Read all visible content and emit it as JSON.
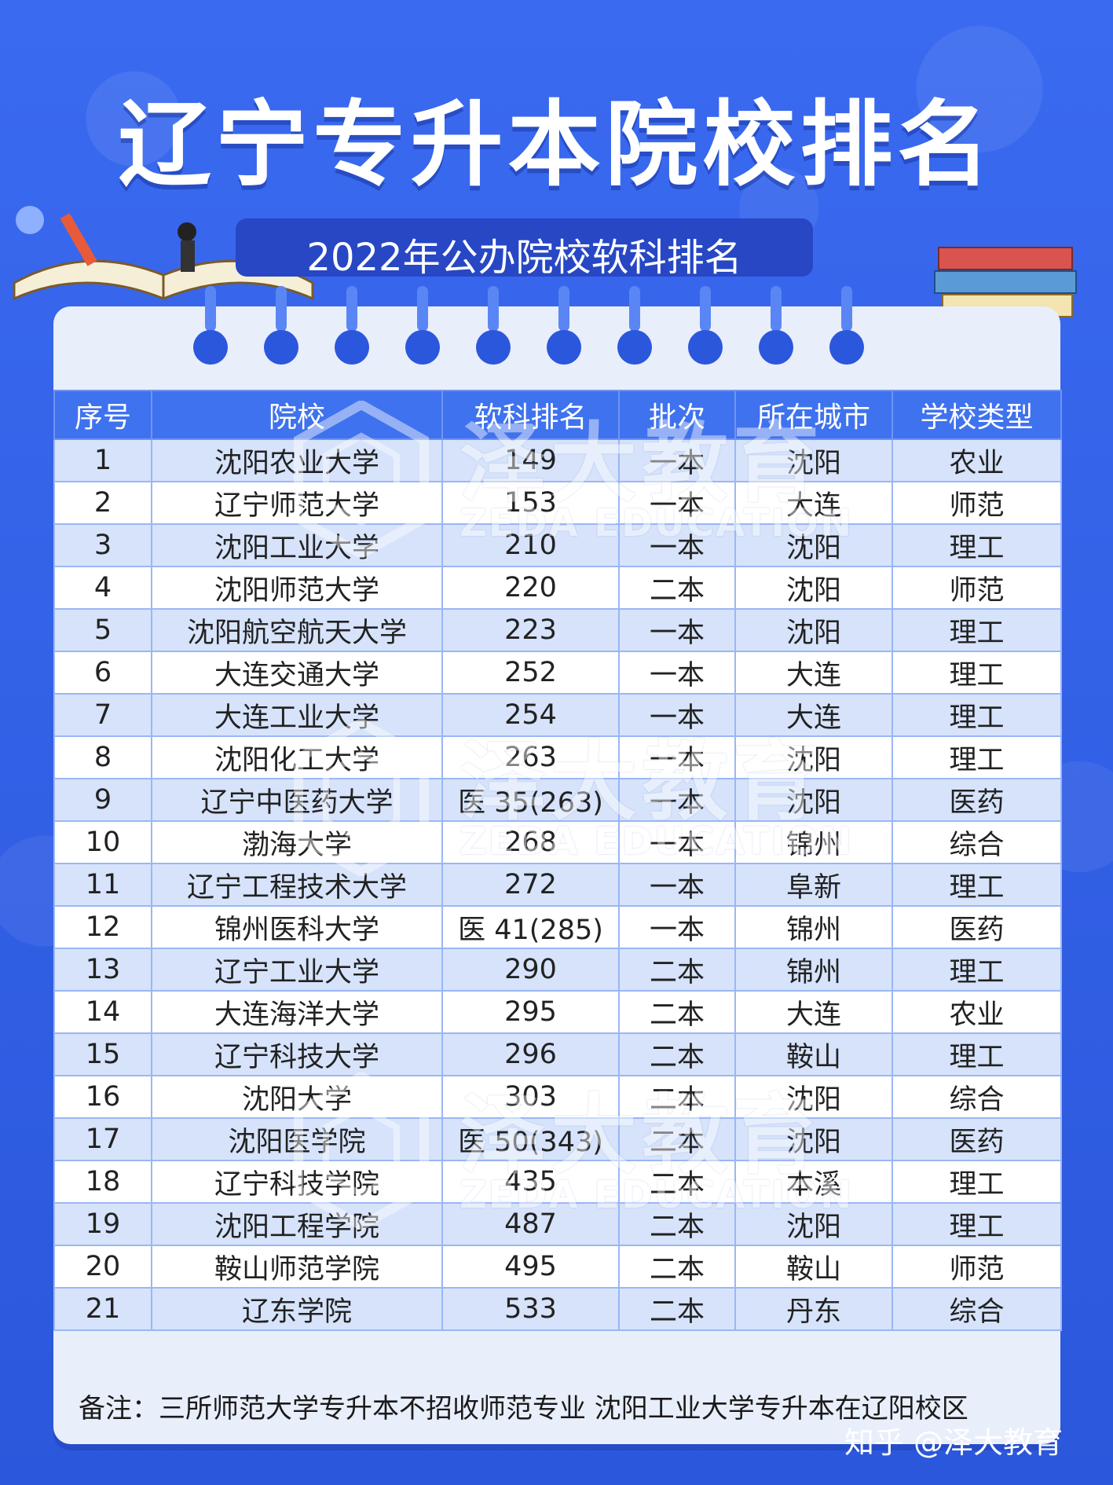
{
  "header": {
    "title": "辽宁专升本院校排名",
    "subtitle": "2022年公办院校软科排名"
  },
  "table": {
    "columns": [
      "序号",
      "院校",
      "软科排名",
      "批次",
      "所在城市",
      "学校类型"
    ],
    "rows": [
      [
        "1",
        "沈阳农业大学",
        "149",
        "一本",
        "沈阳",
        "农业"
      ],
      [
        "2",
        "辽宁师范大学",
        "153",
        "一本",
        "大连",
        "师范"
      ],
      [
        "3",
        "沈阳工业大学",
        "210",
        "一本",
        "沈阳",
        "理工"
      ],
      [
        "4",
        "沈阳师范大学",
        "220",
        "二本",
        "沈阳",
        "师范"
      ],
      [
        "5",
        "沈阳航空航天大学",
        "223",
        "一本",
        "沈阳",
        "理工"
      ],
      [
        "6",
        "大连交通大学",
        "252",
        "一本",
        "大连",
        "理工"
      ],
      [
        "7",
        "大连工业大学",
        "254",
        "一本",
        "大连",
        "理工"
      ],
      [
        "8",
        "沈阳化工大学",
        "263",
        "一本",
        "沈阳",
        "理工"
      ],
      [
        "9",
        "辽宁中医药大学",
        "医 35(263)",
        "一本",
        "沈阳",
        "医药"
      ],
      [
        "10",
        "渤海大学",
        "268",
        "一本",
        "锦州",
        "综合"
      ],
      [
        "11",
        "辽宁工程技术大学",
        "272",
        "一本",
        "阜新",
        "理工"
      ],
      [
        "12",
        "锦州医科大学",
        "医 41(285)",
        "一本",
        "锦州",
        "医药"
      ],
      [
        "13",
        "辽宁工业大学",
        "290",
        "二本",
        "锦州",
        "理工"
      ],
      [
        "14",
        "大连海洋大学",
        "295",
        "二本",
        "大连",
        "农业"
      ],
      [
        "15",
        "辽宁科技大学",
        "296",
        "二本",
        "鞍山",
        "理工"
      ],
      [
        "16",
        "沈阳大学",
        "303",
        "二本",
        "沈阳",
        "综合"
      ],
      [
        "17",
        "沈阳医学院",
        "医 50(343)",
        "二本",
        "沈阳",
        "医药"
      ],
      [
        "18",
        "辽宁科技学院",
        "435",
        "二本",
        "本溪",
        "理工"
      ],
      [
        "19",
        "沈阳工程学院",
        "487",
        "二本",
        "沈阳",
        "理工"
      ],
      [
        "20",
        "鞍山师范学院",
        "495",
        "二本",
        "鞍山",
        "师范"
      ],
      [
        "21",
        "辽东学院",
        "533",
        "二本",
        "丹东",
        "综合"
      ]
    ]
  },
  "watermark": {
    "cn": "泽大教育",
    "en": "ZEDA EDUCATION"
  },
  "footer": {
    "note": "备注：三所师范大学专升本不招收师范专业   沈阳工业大学专升本在辽阳校区",
    "credit": "知乎 @泽大教育"
  },
  "colors": {
    "background": "#2f5fe6",
    "header_row": "#3f72ee",
    "row_stripe": "#d6e3fb",
    "card": "#e9eefb"
  }
}
